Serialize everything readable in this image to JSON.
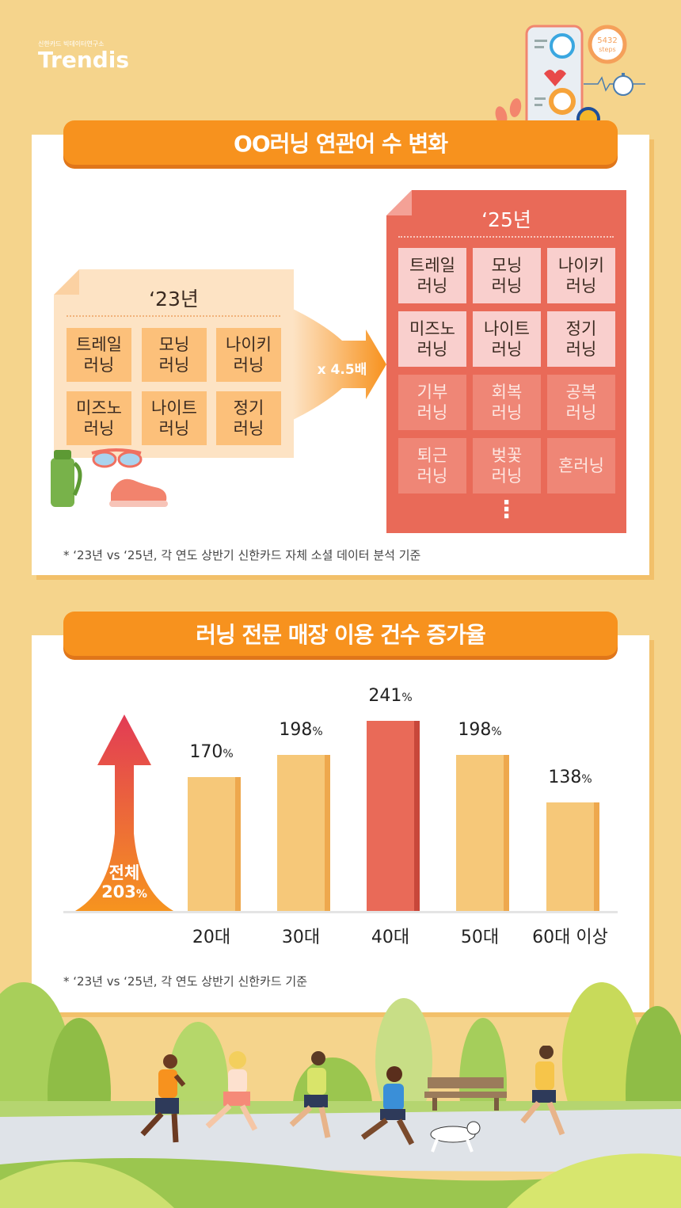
{
  "logo": {
    "subtitle": "신한카드 빅데이터연구소",
    "name": "Trendis"
  },
  "decor": {
    "steps_value": "5432",
    "steps_unit": "steps"
  },
  "section1": {
    "title": "OO러닝 연관어 수 변화",
    "panel23": {
      "year": "‘23년",
      "items": [
        "트레일\n러닝",
        "모닝\n러닝",
        "나이키\n러닝",
        "미즈노\n러닝",
        "나이트\n러닝",
        "정기\n러닝"
      ]
    },
    "multiplier": "x 4.5배",
    "panel25": {
      "year": "‘25년",
      "items": [
        "트레일\n러닝",
        "모닝\n러닝",
        "나이키\n러닝",
        "미즈노\n러닝",
        "나이트\n러닝",
        "정기\n러닝"
      ],
      "new_items": [
        "기부\n러닝",
        "회복\n러닝",
        "공복\n러닝",
        "퇴근\n러닝",
        "벚꽃\n러닝",
        "혼러닝"
      ],
      "more": "⋮"
    },
    "footnote": "* ‘23년 vs ‘25년, 각 연도 상반기 신한카드 자체 소셜 데이터 분석 기준"
  },
  "section2": {
    "title": "러닝 전문 매장 이용 건수 증가율",
    "total_label": "전체",
    "total_value": "203",
    "percent_sign": "%",
    "footnote": "* ‘23년 vs ‘25년, 각 연도 상반기 신한카드 기준"
  },
  "chart_data": {
    "type": "bar",
    "title": "러닝 전문 매장 이용 건수 증가율",
    "categories": [
      "20대",
      "30대",
      "40대",
      "50대",
      "60대 이상"
    ],
    "values": [
      170,
      198,
      241,
      198,
      138
    ],
    "unit": "%",
    "highlight_index": 2,
    "overall": 203,
    "ylim": [
      0,
      241
    ],
    "colors": {
      "normal": "#f6c879",
      "normal_side": "#eea84d",
      "highlight": "#e96a58",
      "highlight_side": "#c8473a"
    }
  }
}
